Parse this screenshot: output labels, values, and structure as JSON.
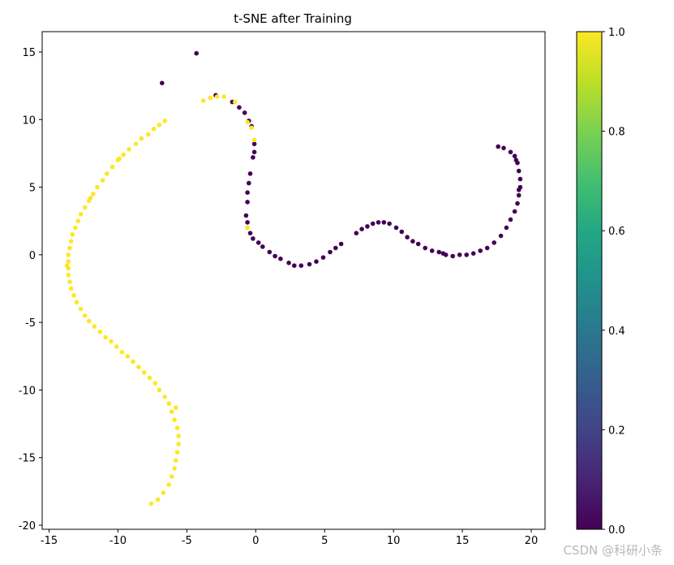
{
  "chart_data": {
    "type": "scatter",
    "title": "t-SNE after Training",
    "xlabel": "",
    "ylabel": "",
    "xlim": [
      -15.5,
      21
    ],
    "ylim": [
      -20.3,
      16.5
    ],
    "xticks": [
      -15,
      -10,
      -5,
      0,
      5,
      10,
      15,
      20
    ],
    "yticks": [
      -20,
      -15,
      -10,
      -5,
      0,
      5,
      10,
      15
    ],
    "colorbar": {
      "range": [
        0.0,
        1.0
      ],
      "ticks": [
        "0.0",
        "0.2",
        "0.4",
        "0.6",
        "0.8",
        "1.0"
      ],
      "colormap": "viridis"
    },
    "colors": {
      "class_0": "#440154",
      "class_1": "#fde725"
    },
    "series": [
      {
        "value": 0,
        "points": [
          [
            -4.3,
            14.9
          ],
          [
            -6.8,
            12.7
          ],
          [
            -2.9,
            11.8
          ],
          [
            -1.7,
            11.3
          ],
          [
            -1.2,
            10.9
          ],
          [
            -0.8,
            10.5
          ],
          [
            -0.5,
            9.9
          ],
          [
            -0.3,
            9.5
          ],
          [
            -0.1,
            8.2
          ],
          [
            -0.1,
            7.6
          ],
          [
            -0.2,
            7.2
          ],
          [
            -0.4,
            6.0
          ],
          [
            -0.5,
            5.3
          ],
          [
            -0.6,
            4.6
          ],
          [
            -0.6,
            3.9
          ],
          [
            -0.7,
            2.9
          ],
          [
            -0.6,
            2.4
          ],
          [
            -0.4,
            1.6
          ],
          [
            -0.2,
            1.2
          ],
          [
            0.2,
            0.9
          ],
          [
            0.5,
            0.6
          ],
          [
            1.0,
            0.2
          ],
          [
            1.4,
            -0.1
          ],
          [
            1.8,
            -0.3
          ],
          [
            2.4,
            -0.6
          ],
          [
            2.8,
            -0.8
          ],
          [
            3.3,
            -0.8
          ],
          [
            3.9,
            -0.7
          ],
          [
            4.4,
            -0.5
          ],
          [
            4.9,
            -0.2
          ],
          [
            5.4,
            0.2
          ],
          [
            5.8,
            0.5
          ],
          [
            6.2,
            0.8
          ],
          [
            7.3,
            1.6
          ],
          [
            7.7,
            1.9
          ],
          [
            8.1,
            2.1
          ],
          [
            8.5,
            2.3
          ],
          [
            8.9,
            2.4
          ],
          [
            9.3,
            2.4
          ],
          [
            9.7,
            2.3
          ],
          [
            10.2,
            2.0
          ],
          [
            10.6,
            1.7
          ],
          [
            11.0,
            1.3
          ],
          [
            11.4,
            1.0
          ],
          [
            11.8,
            0.8
          ],
          [
            12.3,
            0.5
          ],
          [
            12.8,
            0.3
          ],
          [
            13.3,
            0.2
          ],
          [
            13.8,
            0.0
          ],
          [
            14.3,
            -0.1
          ],
          [
            14.8,
            0.0
          ],
          [
            15.3,
            0.0
          ],
          [
            15.8,
            0.1
          ],
          [
            16.3,
            0.3
          ],
          [
            16.8,
            0.5
          ],
          [
            17.3,
            0.9
          ],
          [
            17.8,
            1.4
          ],
          [
            18.2,
            2.0
          ],
          [
            18.5,
            2.6
          ],
          [
            18.8,
            3.2
          ],
          [
            19.0,
            3.8
          ],
          [
            19.1,
            4.4
          ],
          [
            19.2,
            5.0
          ],
          [
            19.2,
            5.6
          ],
          [
            19.1,
            6.2
          ],
          [
            19.0,
            6.8
          ],
          [
            18.8,
            7.3
          ],
          [
            18.5,
            7.6
          ],
          [
            18.0,
            7.9
          ],
          [
            17.6,
            8.0
          ],
          [
            19.1,
            4.8
          ],
          [
            18.9,
            7.0
          ],
          [
            13.6,
            0.1
          ]
        ]
      },
      {
        "value": 1,
        "points": [
          [
            -2.3,
            11.7
          ],
          [
            -2.8,
            11.7
          ],
          [
            -3.3,
            11.6
          ],
          [
            -3.8,
            11.4
          ],
          [
            -1.5,
            11.3
          ],
          [
            -0.6,
            9.8
          ],
          [
            -0.3,
            9.4
          ],
          [
            -0.1,
            8.5
          ],
          [
            -0.6,
            2.0
          ],
          [
            -6.6,
            9.9
          ],
          [
            -7.0,
            9.6
          ],
          [
            -7.4,
            9.3
          ],
          [
            -7.8,
            8.9
          ],
          [
            -8.3,
            8.6
          ],
          [
            -8.7,
            8.2
          ],
          [
            -9.2,
            7.8
          ],
          [
            -9.6,
            7.4
          ],
          [
            -10.0,
            7.0
          ],
          [
            -10.4,
            6.5
          ],
          [
            -10.8,
            6.0
          ],
          [
            -11.1,
            5.5
          ],
          [
            -11.5,
            5.0
          ],
          [
            -11.8,
            4.5
          ],
          [
            -12.1,
            4.0
          ],
          [
            -12.4,
            3.5
          ],
          [
            -12.7,
            3.0
          ],
          [
            -12.9,
            2.5
          ],
          [
            -13.1,
            2.0
          ],
          [
            -13.3,
            1.5
          ],
          [
            -13.4,
            1.0
          ],
          [
            -13.5,
            0.5
          ],
          [
            -13.6,
            0.0
          ],
          [
            -13.6,
            -0.5
          ],
          [
            -13.6,
            -1.0
          ],
          [
            -13.6,
            -1.5
          ],
          [
            -13.5,
            -2.0
          ],
          [
            -13.4,
            -2.5
          ],
          [
            -13.2,
            -3.0
          ],
          [
            -13.0,
            -3.5
          ],
          [
            -12.7,
            -4.0
          ],
          [
            -12.4,
            -4.5
          ],
          [
            -12.1,
            -4.9
          ],
          [
            -11.7,
            -5.3
          ],
          [
            -11.3,
            -5.7
          ],
          [
            -10.9,
            -6.1
          ],
          [
            -10.5,
            -6.4
          ],
          [
            -10.1,
            -6.8
          ],
          [
            -9.7,
            -7.2
          ],
          [
            -9.3,
            -7.5
          ],
          [
            -8.9,
            -7.9
          ],
          [
            -8.5,
            -8.3
          ],
          [
            -8.1,
            -8.7
          ],
          [
            -7.7,
            -9.1
          ],
          [
            -7.3,
            -9.5
          ],
          [
            -7.0,
            -10.0
          ],
          [
            -6.6,
            -10.5
          ],
          [
            -6.3,
            -11.0
          ],
          [
            -6.1,
            -11.6
          ],
          [
            -5.9,
            -12.2
          ],
          [
            -5.7,
            -12.8
          ],
          [
            -5.6,
            -13.4
          ],
          [
            -5.6,
            -14.0
          ],
          [
            -5.7,
            -14.6
          ],
          [
            -5.8,
            -15.2
          ],
          [
            -5.9,
            -15.8
          ],
          [
            -6.1,
            -16.4
          ],
          [
            -6.3,
            -17.0
          ],
          [
            -6.7,
            -17.6
          ],
          [
            -7.1,
            -18.1
          ],
          [
            -7.6,
            -18.4
          ],
          [
            -13.7,
            -0.8
          ],
          [
            -12.0,
            4.2
          ],
          [
            -9.9,
            7.1
          ],
          [
            -5.8,
            -11.3
          ]
        ]
      }
    ]
  },
  "watermark": "CSDN @科研小条"
}
